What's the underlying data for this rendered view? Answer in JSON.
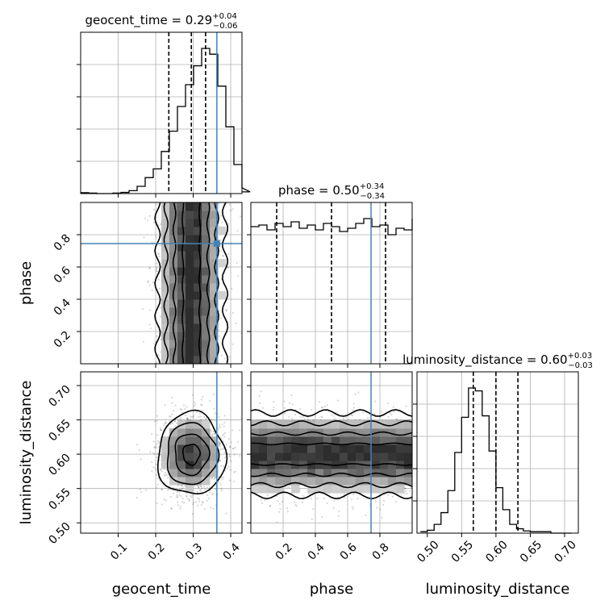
{
  "chart_data": {
    "type": "corner",
    "parameters": [
      {
        "name": "geocent_time",
        "range": [
          0.0,
          0.43
        ],
        "ticks": [
          0.1,
          0.2,
          0.3,
          0.4
        ],
        "tick_labels": [
          "0.1",
          "0.2",
          "0.3",
          "0.4"
        ],
        "title_prefix": "geocent_time = 0.29",
        "title_plus": "+0.04",
        "title_minus": "−0.06",
        "quantiles": [
          0.235,
          0.295,
          0.333
        ],
        "truth": 0.363,
        "hist_edges_start": 0.0,
        "hist_bin_width": 0.0215,
        "hist_counts": [
          0.006,
          0.003,
          0.0,
          0.0,
          0.003,
          0.008,
          0.02,
          0.05,
          0.11,
          0.17,
          0.29,
          0.43,
          0.6,
          0.75,
          0.88,
          1.0,
          0.96,
          0.74,
          0.46,
          0.2,
          0.04,
          0.012
        ]
      },
      {
        "name": "phase",
        "range": [
          0.0,
          1.0
        ],
        "ticks": [
          0.2,
          0.4,
          0.6,
          0.8
        ],
        "tick_labels": [
          "0.2",
          "0.4",
          "0.6",
          "0.8"
        ],
        "title_prefix": "phase = 0.50",
        "title_plus": "+0.34",
        "title_minus": "−0.34",
        "quantiles": [
          0.16,
          0.5,
          0.835
        ],
        "truth": 0.745,
        "hist_edges_start": 0.0,
        "hist_bin_width": 0.05,
        "hist_counts": [
          0.85,
          0.86,
          0.83,
          0.87,
          0.85,
          0.88,
          0.84,
          0.86,
          0.83,
          0.87,
          0.85,
          0.82,
          0.84,
          0.87,
          0.9,
          0.85,
          0.86,
          0.8,
          0.84,
          0.83,
          0.9
        ]
      },
      {
        "name": "luminosity_distance",
        "range": [
          0.485,
          0.72
        ],
        "ticks": [
          0.5,
          0.55,
          0.6,
          0.65,
          0.7
        ],
        "tick_labels": [
          "0.50",
          "0.55",
          "0.60",
          "0.65",
          "0.70"
        ],
        "title_prefix": "luminosity_distance = 0.60",
        "title_plus": "+0.03",
        "title_minus": "−0.03",
        "quantiles": [
          0.567,
          0.6,
          0.632
        ],
        "truth": null,
        "hist_edges_start": 0.49,
        "hist_bin_width": 0.01,
        "hist_counts": [
          0.01,
          0.02,
          0.06,
          0.14,
          0.29,
          0.55,
          0.79,
          0.99,
          0.97,
          0.8,
          0.56,
          0.31,
          0.16,
          0.06,
          0.03,
          0.015,
          0.01,
          0.01,
          0.01,
          0.0,
          0.0,
          0.0
        ]
      }
    ],
    "truth_point_phase_panel": [
      0.363,
      0.745
    ],
    "truth_color": "#4682b4",
    "hist_color": "#000000",
    "grid": true,
    "ylabels": [
      "phase",
      "luminosity_distance"
    ]
  }
}
